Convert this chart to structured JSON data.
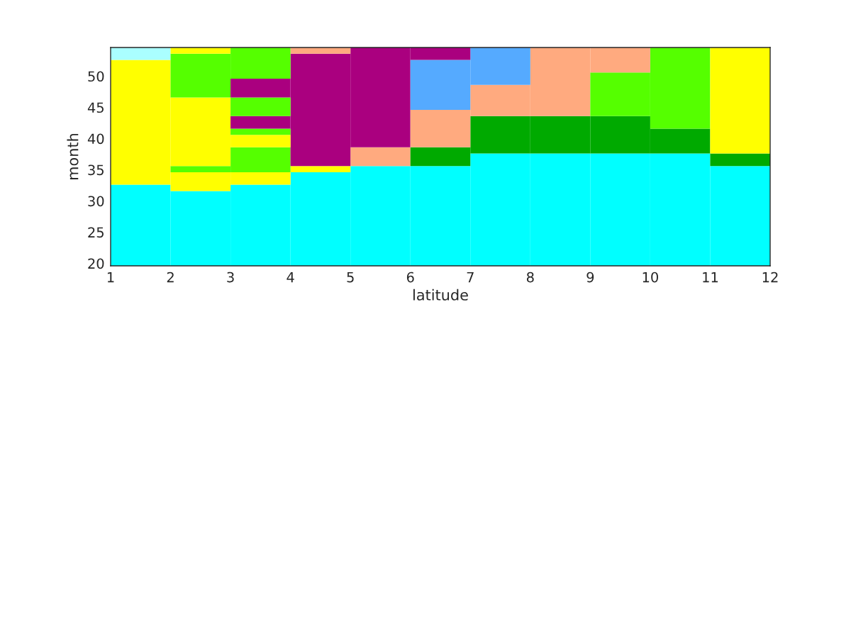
{
  "chart_data": {
    "type": "bar",
    "xlabel": "latitude",
    "ylabel": "month",
    "x": [
      1.5,
      2.5,
      3.5,
      4.5,
      5.5,
      6.5,
      7.5,
      8.5,
      9.5,
      10.5,
      11.5
    ],
    "xlim": [
      1,
      12
    ],
    "xticks": [
      1,
      2,
      3,
      4,
      5,
      6,
      7,
      8,
      9,
      10,
      11,
      12
    ],
    "ylim": [
      19.6,
      54.6
    ],
    "yticks": [
      20,
      25,
      30,
      35,
      40,
      45,
      50
    ],
    "grid": false,
    "legend": false,
    "series": [
      {
        "base": [
          19.6,
          19.6,
          19.6,
          19.6,
          19.6,
          19.6,
          19.6,
          19.6,
          19.6,
          19.6,
          19.6
        ],
        "values": [
          13,
          12,
          13,
          15,
          16,
          16,
          18,
          18,
          18,
          18,
          16
        ],
        "colors": [
          "#00ffff",
          "#00ffff",
          "#00ffff",
          "#00ffff",
          "#00ffff",
          "#00ffff",
          "#00ffff",
          "#00ffff",
          "#00ffff",
          "#00ffff",
          "#00ffff"
        ]
      },
      {
        "base": [
          32.6,
          31.6,
          32.6,
          34.6,
          35.6,
          35.6,
          37.6,
          37.6,
          37.6,
          37.6,
          35.6
        ],
        "values": [
          20,
          3,
          2,
          1,
          3,
          3,
          6,
          6,
          6,
          4,
          2
        ],
        "colors": [
          "#ffff00",
          "#ffff00",
          "#ffff00",
          "#ffff00",
          "#ffaa7f",
          "#00aa00",
          "#00aa00",
          "#00aa00",
          "#00aa00",
          "#00aa00",
          "#00aa00"
        ]
      },
      {
        "base": [
          52.6,
          34.6,
          34.6,
          35.6,
          38.6,
          38.6,
          43.6,
          43.6,
          43.6,
          41.6,
          37.6
        ],
        "values": [
          2,
          1,
          4,
          18,
          16,
          6,
          5,
          11,
          7,
          13,
          17
        ],
        "colors": [
          "#aaffff",
          "#55ff00",
          "#55ff00",
          "#aa007f",
          "#aa007f",
          "#ffaa7f",
          "#ffaa7f",
          "#ffaa7f",
          "#55ff00",
          "#55ff00",
          "#ffff00"
        ]
      },
      {
        "base": [
          null,
          35.6,
          38.6,
          53.6,
          null,
          44.6,
          48.6,
          null,
          50.6,
          null,
          null
        ],
        "values": [
          null,
          11,
          2,
          1,
          null,
          8,
          6,
          null,
          4,
          null,
          null
        ],
        "colors": [
          null,
          "#ffff00",
          "#ffff00",
          "#ffaa7f",
          null,
          "#55aaff",
          "#55aaff",
          null,
          "#ffaa7f",
          null,
          null
        ]
      },
      {
        "base": [
          null,
          46.6,
          40.6,
          null,
          null,
          52.6,
          null,
          null,
          null,
          null,
          null
        ],
        "values": [
          null,
          7,
          1,
          null,
          null,
          2,
          null,
          null,
          null,
          null,
          null
        ],
        "colors": [
          null,
          "#55ff00",
          "#55ff00",
          null,
          null,
          "#aa007f",
          null,
          null,
          null,
          null,
          null
        ]
      },
      {
        "base": [
          null,
          53.6,
          41.6,
          null,
          null,
          null,
          null,
          null,
          null,
          null,
          null
        ],
        "values": [
          null,
          1,
          2,
          null,
          null,
          null,
          null,
          null,
          null,
          null,
          null
        ],
        "colors": [
          null,
          "#ffff00",
          "#aa007f",
          null,
          null,
          null,
          null,
          null,
          null,
          null,
          null
        ]
      },
      {
        "base": [
          null,
          null,
          43.6,
          null,
          null,
          null,
          null,
          null,
          null,
          null,
          null
        ],
        "values": [
          null,
          null,
          3,
          null,
          null,
          null,
          null,
          null,
          null,
          null,
          null
        ],
        "colors": [
          null,
          null,
          "#55ff00",
          null,
          null,
          null,
          null,
          null,
          null,
          null,
          null
        ]
      },
      {
        "base": [
          null,
          null,
          46.6,
          null,
          null,
          null,
          null,
          null,
          null,
          null,
          null
        ],
        "values": [
          null,
          null,
          3,
          null,
          null,
          null,
          null,
          null,
          null,
          null,
          null
        ],
        "colors": [
          null,
          null,
          "#aa007f",
          null,
          null,
          null,
          null,
          null,
          null,
          null,
          null
        ]
      },
      {
        "base": [
          null,
          null,
          49.6,
          null,
          null,
          null,
          null,
          null,
          null,
          null,
          null
        ],
        "values": [
          null,
          null,
          5,
          null,
          null,
          null,
          null,
          null,
          null,
          null,
          null
        ],
        "colors": [
          null,
          null,
          "#55ff00",
          null,
          null,
          null,
          null,
          null,
          null,
          null,
          null
        ]
      }
    ]
  }
}
